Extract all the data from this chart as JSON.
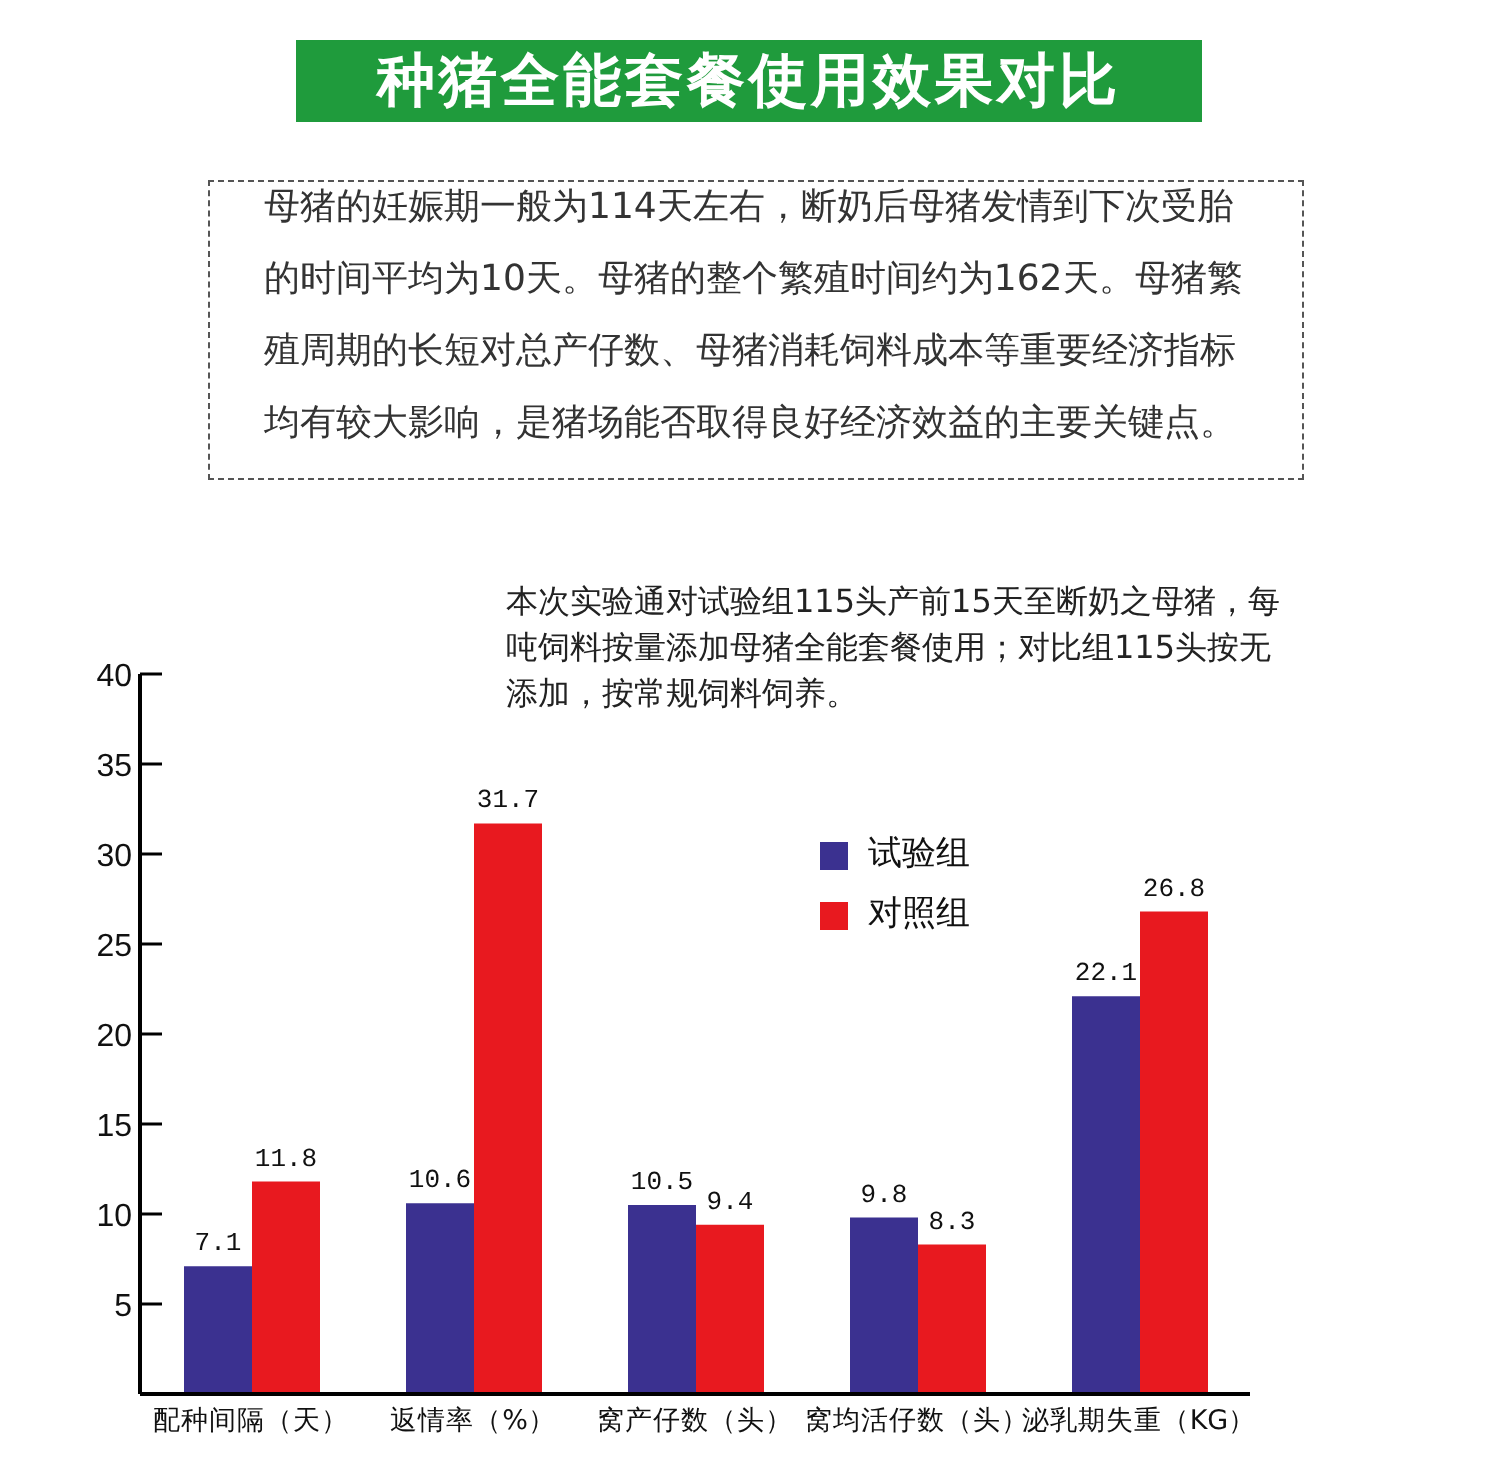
{
  "chart_data": {
    "type": "bar",
    "title": "种猪全能套餐使用效果对比",
    "annotations": [
      "母猪的妊娠期一般为114天左右，断奶后母猪发情到下次受胎的时间平均为10天。母猪的整个繁殖时间约为162天。母猪繁殖周期的长短对总产仔数、母猪消耗饲料成本等重要经济指标均有较大影响，是猪场能否取得良好经济效益的主要关键点。",
      "本次实验通对试验组115头产前15天至断奶之母猪，每吨饲料按量添加母猪全能套餐使用；对比组115头按无添加，按常规饲料饲养。"
    ],
    "categories": [
      "配种间隔（天）",
      "返情率（%）",
      "窝产仔数（头）",
      "窝均活仔数（头）",
      "泌乳期失重（KG）"
    ],
    "series": [
      {
        "name": "试验组",
        "color": "#3b3190",
        "values": [
          7.1,
          10.6,
          10.5,
          9.8,
          22.1
        ]
      },
      {
        "name": "对照组",
        "color": "#e8191f",
        "values": [
          11.8,
          31.7,
          9.4,
          8.3,
          26.8
        ]
      }
    ],
    "ylim": [
      0,
      40
    ],
    "yticks": [
      5,
      10,
      15,
      20,
      25,
      30,
      35,
      40
    ],
    "legend": "top right",
    "data_labels": true
  }
}
